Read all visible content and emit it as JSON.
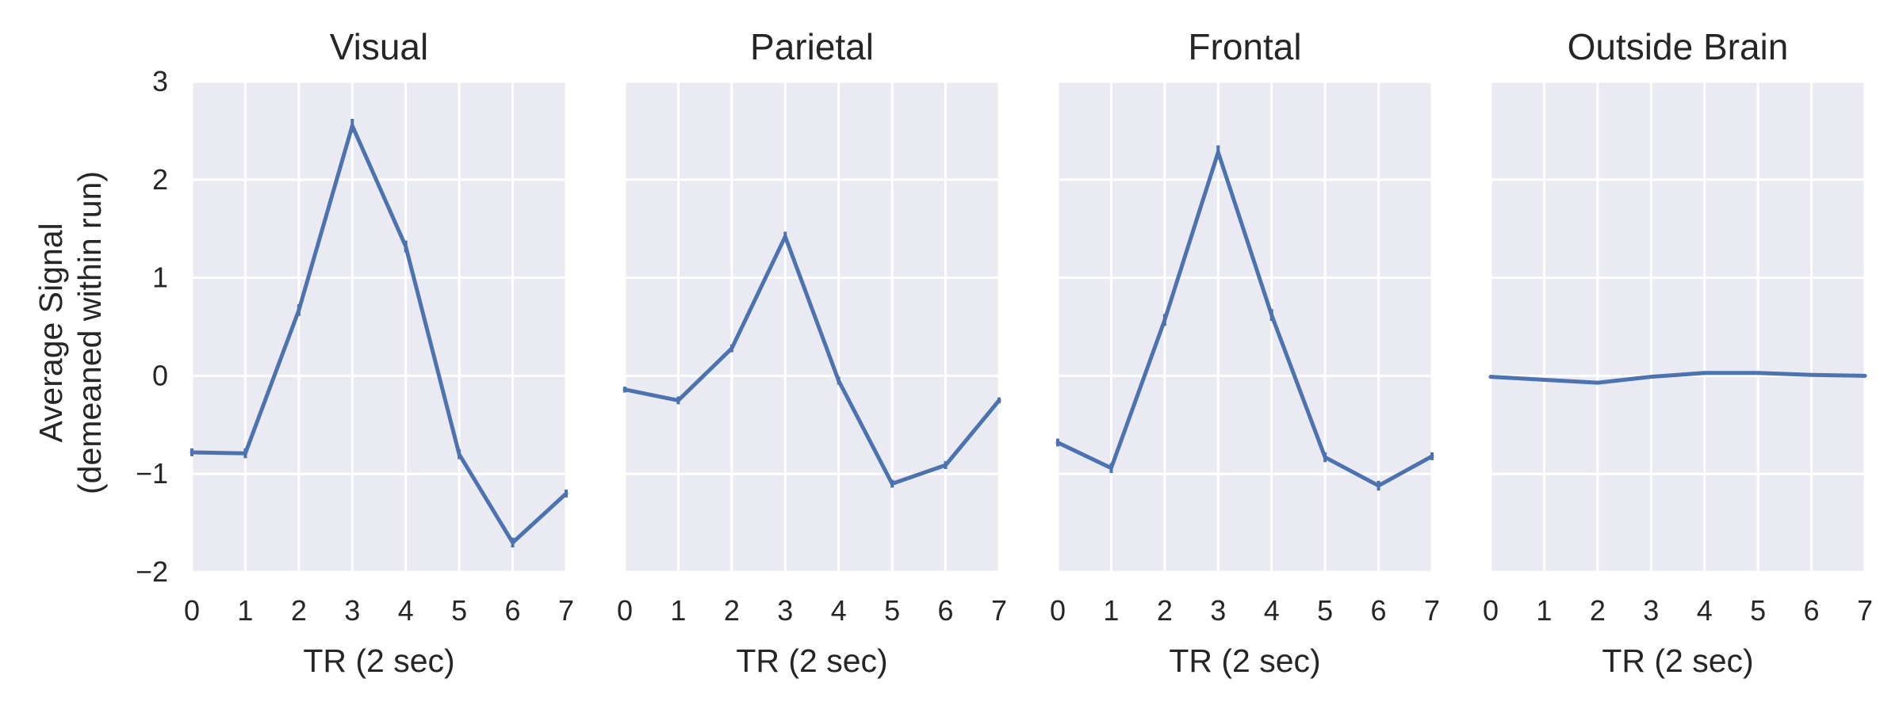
{
  "chart_data": [
    {
      "type": "line",
      "title": "Visual",
      "xlabel": "TR (2 sec)",
      "x": [
        0,
        1,
        2,
        3,
        4,
        5,
        6,
        7
      ],
      "values": [
        -0.78,
        -0.79,
        0.67,
        2.55,
        1.32,
        -0.8,
        -1.7,
        -1.2
      ],
      "errors": [
        0.04,
        0.05,
        0.06,
        0.07,
        0.06,
        0.05,
        0.05,
        0.04
      ],
      "xlim": [
        0,
        7
      ],
      "ylim": [
        -2,
        3
      ],
      "xticks": [
        "0",
        "1",
        "2",
        "3",
        "4",
        "5",
        "6",
        "7"
      ],
      "yticks": [
        "3",
        "2",
        "1",
        "0",
        "−1",
        "−2"
      ],
      "grid": true
    },
    {
      "type": "line",
      "title": "Parietal",
      "xlabel": "TR (2 sec)",
      "x": [
        0,
        1,
        2,
        3,
        4,
        5,
        6,
        7
      ],
      "values": [
        -0.14,
        -0.25,
        0.28,
        1.42,
        -0.05,
        -1.1,
        -0.91,
        -0.25
      ],
      "errors": [
        0.03,
        0.04,
        0.04,
        0.05,
        0.04,
        0.04,
        0.04,
        0.03
      ],
      "xlim": [
        0,
        7
      ],
      "ylim": [
        -2,
        3
      ],
      "xticks": [
        "0",
        "1",
        "2",
        "3",
        "4",
        "5",
        "6",
        "7"
      ],
      "grid": true
    },
    {
      "type": "line",
      "title": "Frontal",
      "xlabel": "TR (2 sec)",
      "x": [
        0,
        1,
        2,
        3,
        4,
        5,
        6,
        7
      ],
      "values": [
        -0.68,
        -0.94,
        0.57,
        2.28,
        0.62,
        -0.83,
        -1.12,
        -0.82
      ],
      "errors": [
        0.04,
        0.05,
        0.06,
        0.07,
        0.06,
        0.05,
        0.05,
        0.04
      ],
      "xlim": [
        0,
        7
      ],
      "ylim": [
        -2,
        3
      ],
      "xticks": [
        "0",
        "1",
        "2",
        "3",
        "4",
        "5",
        "6",
        "7"
      ],
      "grid": true
    },
    {
      "type": "line",
      "title": "Outside Brain",
      "xlabel": "TR (2 sec)",
      "x": [
        0,
        1,
        2,
        3,
        4,
        5,
        6,
        7
      ],
      "values": [
        -0.01,
        -0.04,
        -0.07,
        -0.01,
        0.03,
        0.03,
        0.01,
        0.0
      ],
      "errors": [
        0.0,
        0.0,
        0.0,
        0.0,
        0.0,
        0.0,
        0.0,
        0.0
      ],
      "xlim": [
        0,
        7
      ],
      "ylim": [
        -2,
        3
      ],
      "xticks": [
        "0",
        "1",
        "2",
        "3",
        "4",
        "5",
        "6",
        "7"
      ],
      "grid": true
    }
  ],
  "ylabel_line1": "Average Signal",
  "ylabel_line2": "(demeaned within run)",
  "series_color": "#4c72b0",
  "panel_background": "#eaeaf2"
}
